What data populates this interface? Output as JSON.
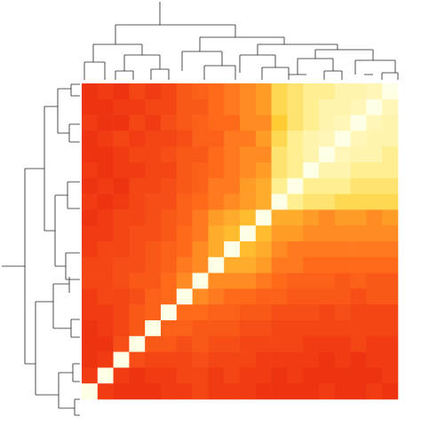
{
  "chart_data": {
    "type": "heatmap",
    "colorscale": [
      [
        0,
        "#e8200e"
      ],
      [
        0.4,
        "#ff6a1a"
      ],
      [
        0.7,
        "#ffcc33"
      ],
      [
        0.85,
        "#ffef90"
      ],
      [
        1,
        "#ffffe6"
      ]
    ],
    "values": [
      [
        0.1,
        0.15,
        0.1,
        0.2,
        0.15,
        0.2,
        0.3,
        0.35,
        0.4,
        0.45,
        0.5,
        0.55,
        0.75,
        0.8,
        0.85,
        0.85,
        0.9,
        0.9,
        0.92,
        1
      ],
      [
        0.1,
        0.1,
        0.15,
        0.15,
        0.2,
        0.2,
        0.3,
        0.3,
        0.4,
        0.45,
        0.5,
        0.55,
        0.75,
        0.8,
        0.85,
        0.9,
        0.9,
        0.92,
        1,
        0.92
      ],
      [
        0.15,
        0.1,
        0.1,
        0.2,
        0.15,
        0.25,
        0.3,
        0.35,
        0.4,
        0.4,
        0.5,
        0.5,
        0.7,
        0.8,
        0.85,
        0.9,
        0.92,
        1,
        0.92,
        0.9
      ],
      [
        0.1,
        0.15,
        0.2,
        0.15,
        0.2,
        0.2,
        0.25,
        0.35,
        0.35,
        0.45,
        0.45,
        0.55,
        0.75,
        0.85,
        0.9,
        0.92,
        1,
        0.92,
        0.9,
        0.9
      ],
      [
        0.1,
        0.1,
        0.15,
        0.2,
        0.2,
        0.25,
        0.3,
        0.3,
        0.4,
        0.45,
        0.5,
        0.5,
        0.8,
        0.85,
        0.9,
        1,
        0.92,
        0.9,
        0.9,
        0.85
      ],
      [
        0.15,
        0.1,
        0.15,
        0.15,
        0.2,
        0.2,
        0.3,
        0.35,
        0.4,
        0.45,
        0.5,
        0.55,
        0.8,
        0.85,
        1,
        0.9,
        0.9,
        0.85,
        0.85,
        0.85
      ],
      [
        0.1,
        0.15,
        0.1,
        0.2,
        0.2,
        0.25,
        0.3,
        0.35,
        0.45,
        0.45,
        0.55,
        0.6,
        0.85,
        1,
        0.85,
        0.85,
        0.85,
        0.8,
        0.8,
        0.8
      ],
      [
        0.15,
        0.1,
        0.15,
        0.2,
        0.25,
        0.25,
        0.35,
        0.4,
        0.45,
        0.5,
        0.55,
        0.6,
        1,
        0.85,
        0.8,
        0.8,
        0.75,
        0.75,
        0.75,
        0.75
      ],
      [
        0.1,
        0.15,
        0.2,
        0.2,
        0.25,
        0.3,
        0.35,
        0.45,
        0.55,
        0.6,
        0.65,
        1,
        0.6,
        0.6,
        0.55,
        0.5,
        0.55,
        0.55,
        0.5,
        0.55
      ],
      [
        0.15,
        0.15,
        0.2,
        0.25,
        0.25,
        0.3,
        0.4,
        0.45,
        0.6,
        0.65,
        1,
        0.65,
        0.55,
        0.55,
        0.5,
        0.5,
        0.5,
        0.5,
        0.5,
        0.5
      ],
      [
        0.15,
        0.2,
        0.2,
        0.25,
        0.3,
        0.35,
        0.4,
        0.5,
        0.6,
        1,
        0.65,
        0.6,
        0.5,
        0.45,
        0.45,
        0.45,
        0.45,
        0.45,
        0.45,
        0.45
      ],
      [
        0.2,
        0.2,
        0.25,
        0.25,
        0.3,
        0.35,
        0.45,
        0.5,
        1,
        0.6,
        0.6,
        0.55,
        0.45,
        0.45,
        0.4,
        0.4,
        0.4,
        0.4,
        0.4,
        0.4
      ],
      [
        0.2,
        0.2,
        0.25,
        0.3,
        0.3,
        0.4,
        0.5,
        1,
        0.5,
        0.5,
        0.5,
        0.45,
        0.4,
        0.35,
        0.35,
        0.35,
        0.3,
        0.35,
        0.3,
        0.3
      ],
      [
        0.15,
        0.2,
        0.2,
        0.25,
        0.35,
        0.4,
        1,
        0.5,
        0.45,
        0.4,
        0.4,
        0.35,
        0.35,
        0.3,
        0.3,
        0.3,
        0.3,
        0.25,
        0.3,
        0.3
      ],
      [
        0.15,
        0.15,
        0.2,
        0.3,
        0.35,
        1,
        0.4,
        0.4,
        0.35,
        0.35,
        0.3,
        0.3,
        0.25,
        0.25,
        0.25,
        0.2,
        0.25,
        0.2,
        0.2,
        0.2
      ],
      [
        0.1,
        0.15,
        0.2,
        0.3,
        1,
        0.35,
        0.35,
        0.3,
        0.3,
        0.3,
        0.25,
        0.25,
        0.2,
        0.2,
        0.2,
        0.2,
        0.2,
        0.2,
        0.2,
        0.2
      ],
      [
        0.1,
        0.1,
        0.25,
        1,
        0.3,
        0.3,
        0.25,
        0.3,
        0.25,
        0.25,
        0.2,
        0.2,
        0.2,
        0.2,
        0.15,
        0.15,
        0.15,
        0.2,
        0.15,
        0.15
      ],
      [
        0.1,
        0.15,
        1,
        0.25,
        0.2,
        0.2,
        0.2,
        0.25,
        0.2,
        0.2,
        0.2,
        0.15,
        0.15,
        0.15,
        0.15,
        0.1,
        0.15,
        0.1,
        0.15,
        0.15
      ],
      [
        0.15,
        1,
        0.15,
        0.1,
        0.15,
        0.15,
        0.2,
        0.2,
        0.15,
        0.2,
        0.15,
        0.15,
        0.1,
        0.15,
        0.1,
        0.1,
        0.1,
        0.1,
        0.1,
        0.15
      ],
      [
        1,
        0.15,
        0.1,
        0.1,
        0.1,
        0.15,
        0.15,
        0.2,
        0.15,
        0.15,
        0.15,
        0.1,
        0.1,
        0.1,
        0.1,
        0.15,
        0.1,
        0.1,
        0.15,
        0.1
      ]
    ]
  }
}
